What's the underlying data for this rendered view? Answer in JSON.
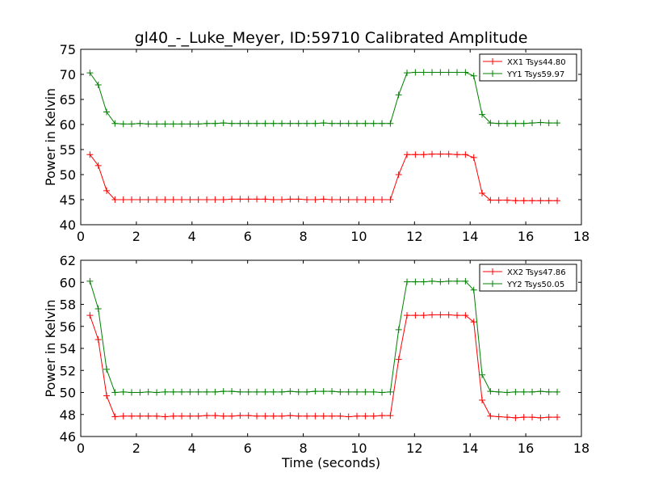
{
  "figure": {
    "title": "gl40_-_Luke_Meyer, ID:59710 Calibrated Amplitude"
  },
  "chart_data": [
    {
      "type": "line",
      "title": "gl40_-_Luke_Meyer, ID:59710 Calibrated Amplitude",
      "xlabel": "",
      "ylabel": "Power in Kelvin",
      "xlim": [
        0,
        18
      ],
      "ylim": [
        40,
        75
      ],
      "xticks": [
        0,
        2,
        4,
        6,
        8,
        10,
        12,
        14,
        16,
        18
      ],
      "yticks": [
        40,
        45,
        50,
        55,
        60,
        65,
        70,
        75
      ],
      "legend_position": "top-right",
      "grid": false,
      "x": [
        0.33,
        0.63,
        0.93,
        1.23,
        1.53,
        1.83,
        2.13,
        2.43,
        2.73,
        3.03,
        3.33,
        3.63,
        3.93,
        4.23,
        4.53,
        4.83,
        5.13,
        5.43,
        5.73,
        6.03,
        6.33,
        6.63,
        6.93,
        7.23,
        7.53,
        7.83,
        8.13,
        8.43,
        8.73,
        9.03,
        9.33,
        9.63,
        9.93,
        10.23,
        10.53,
        10.83,
        11.13,
        11.43,
        11.73,
        12.03,
        12.33,
        12.63,
        12.93,
        13.23,
        13.53,
        13.83,
        14.13,
        14.43,
        14.73,
        15.03,
        15.33,
        15.63,
        15.93,
        16.23,
        16.53,
        16.83,
        17.13
      ],
      "series": [
        {
          "name": "XX1 Tsys44.80",
          "color": "#ff0000",
          "values": [
            54.0,
            51.8,
            46.8,
            45.0,
            45.0,
            45.0,
            45.0,
            45.0,
            45.0,
            45.0,
            45.0,
            45.0,
            45.0,
            45.0,
            45.0,
            45.0,
            45.0,
            45.1,
            45.1,
            45.1,
            45.1,
            45.1,
            45.0,
            45.0,
            45.1,
            45.1,
            45.0,
            45.0,
            45.1,
            45.0,
            45.0,
            45.0,
            45.0,
            45.0,
            45.0,
            45.0,
            45.0,
            50.0,
            54.0,
            54.0,
            54.0,
            54.1,
            54.1,
            54.1,
            54.0,
            54.0,
            53.4,
            46.3,
            44.9,
            44.9,
            44.9,
            44.8,
            44.8,
            44.8,
            44.8,
            44.8,
            44.8
          ]
        },
        {
          "name": "YY1 Tsys59.97",
          "color": "#008000",
          "values": [
            70.3,
            67.9,
            62.5,
            60.2,
            60.1,
            60.1,
            60.2,
            60.1,
            60.1,
            60.1,
            60.1,
            60.1,
            60.1,
            60.1,
            60.2,
            60.2,
            60.3,
            60.2,
            60.2,
            60.2,
            60.2,
            60.2,
            60.2,
            60.2,
            60.2,
            60.2,
            60.2,
            60.2,
            60.3,
            60.2,
            60.2,
            60.2,
            60.2,
            60.2,
            60.2,
            60.2,
            60.2,
            65.9,
            70.3,
            70.4,
            70.4,
            70.4,
            70.4,
            70.4,
            70.4,
            70.4,
            69.7,
            62.0,
            60.3,
            60.2,
            60.2,
            60.2,
            60.2,
            60.3,
            60.4,
            60.3,
            60.3
          ]
        }
      ]
    },
    {
      "type": "line",
      "title": "",
      "xlabel": "Time (seconds)",
      "ylabel": "Power in Kelvin",
      "xlim": [
        0,
        18
      ],
      "ylim": [
        46,
        62
      ],
      "xticks": [
        0,
        2,
        4,
        6,
        8,
        10,
        12,
        14,
        16,
        18
      ],
      "yticks": [
        46,
        48,
        50,
        52,
        54,
        56,
        58,
        60,
        62
      ],
      "legend_position": "top-right",
      "grid": false,
      "x": [
        0.33,
        0.63,
        0.93,
        1.23,
        1.53,
        1.83,
        2.13,
        2.43,
        2.73,
        3.03,
        3.33,
        3.63,
        3.93,
        4.23,
        4.53,
        4.83,
        5.13,
        5.43,
        5.73,
        6.03,
        6.33,
        6.63,
        6.93,
        7.23,
        7.53,
        7.83,
        8.13,
        8.43,
        8.73,
        9.03,
        9.33,
        9.63,
        9.93,
        10.23,
        10.53,
        10.83,
        11.13,
        11.43,
        11.73,
        12.03,
        12.33,
        12.63,
        12.93,
        13.23,
        13.53,
        13.83,
        14.13,
        14.43,
        14.73,
        15.03,
        15.33,
        15.63,
        15.93,
        16.23,
        16.53,
        16.83,
        17.13
      ],
      "series": [
        {
          "name": "XX2 Tsys47.86",
          "color": "#ff0000",
          "values": [
            57.0,
            54.8,
            49.7,
            47.8,
            47.85,
            47.85,
            47.85,
            47.85,
            47.85,
            47.8,
            47.85,
            47.85,
            47.85,
            47.85,
            47.9,
            47.9,
            47.85,
            47.85,
            47.9,
            47.9,
            47.85,
            47.85,
            47.85,
            47.85,
            47.9,
            47.85,
            47.85,
            47.85,
            47.85,
            47.85,
            47.85,
            47.8,
            47.85,
            47.85,
            47.85,
            47.9,
            47.9,
            53.0,
            57.0,
            57.0,
            57.0,
            57.05,
            57.05,
            57.05,
            57.0,
            57.0,
            56.4,
            49.3,
            47.85,
            47.8,
            47.75,
            47.7,
            47.75,
            47.75,
            47.7,
            47.75,
            47.75
          ]
        },
        {
          "name": "YY2 Tsys50.05",
          "color": "#008000",
          "values": [
            60.1,
            57.6,
            52.1,
            50.0,
            50.05,
            50.0,
            50.0,
            50.05,
            50.0,
            50.05,
            50.05,
            50.05,
            50.05,
            50.05,
            50.05,
            50.05,
            50.1,
            50.1,
            50.05,
            50.05,
            50.05,
            50.05,
            50.05,
            50.05,
            50.1,
            50.05,
            50.05,
            50.1,
            50.1,
            50.1,
            50.05,
            50.05,
            50.05,
            50.05,
            50.05,
            50.0,
            50.05,
            55.7,
            60.05,
            60.05,
            60.05,
            60.1,
            60.05,
            60.1,
            60.1,
            60.1,
            59.3,
            51.6,
            50.1,
            50.05,
            50.0,
            50.05,
            50.05,
            50.05,
            50.1,
            50.05,
            50.05
          ]
        }
      ]
    }
  ]
}
